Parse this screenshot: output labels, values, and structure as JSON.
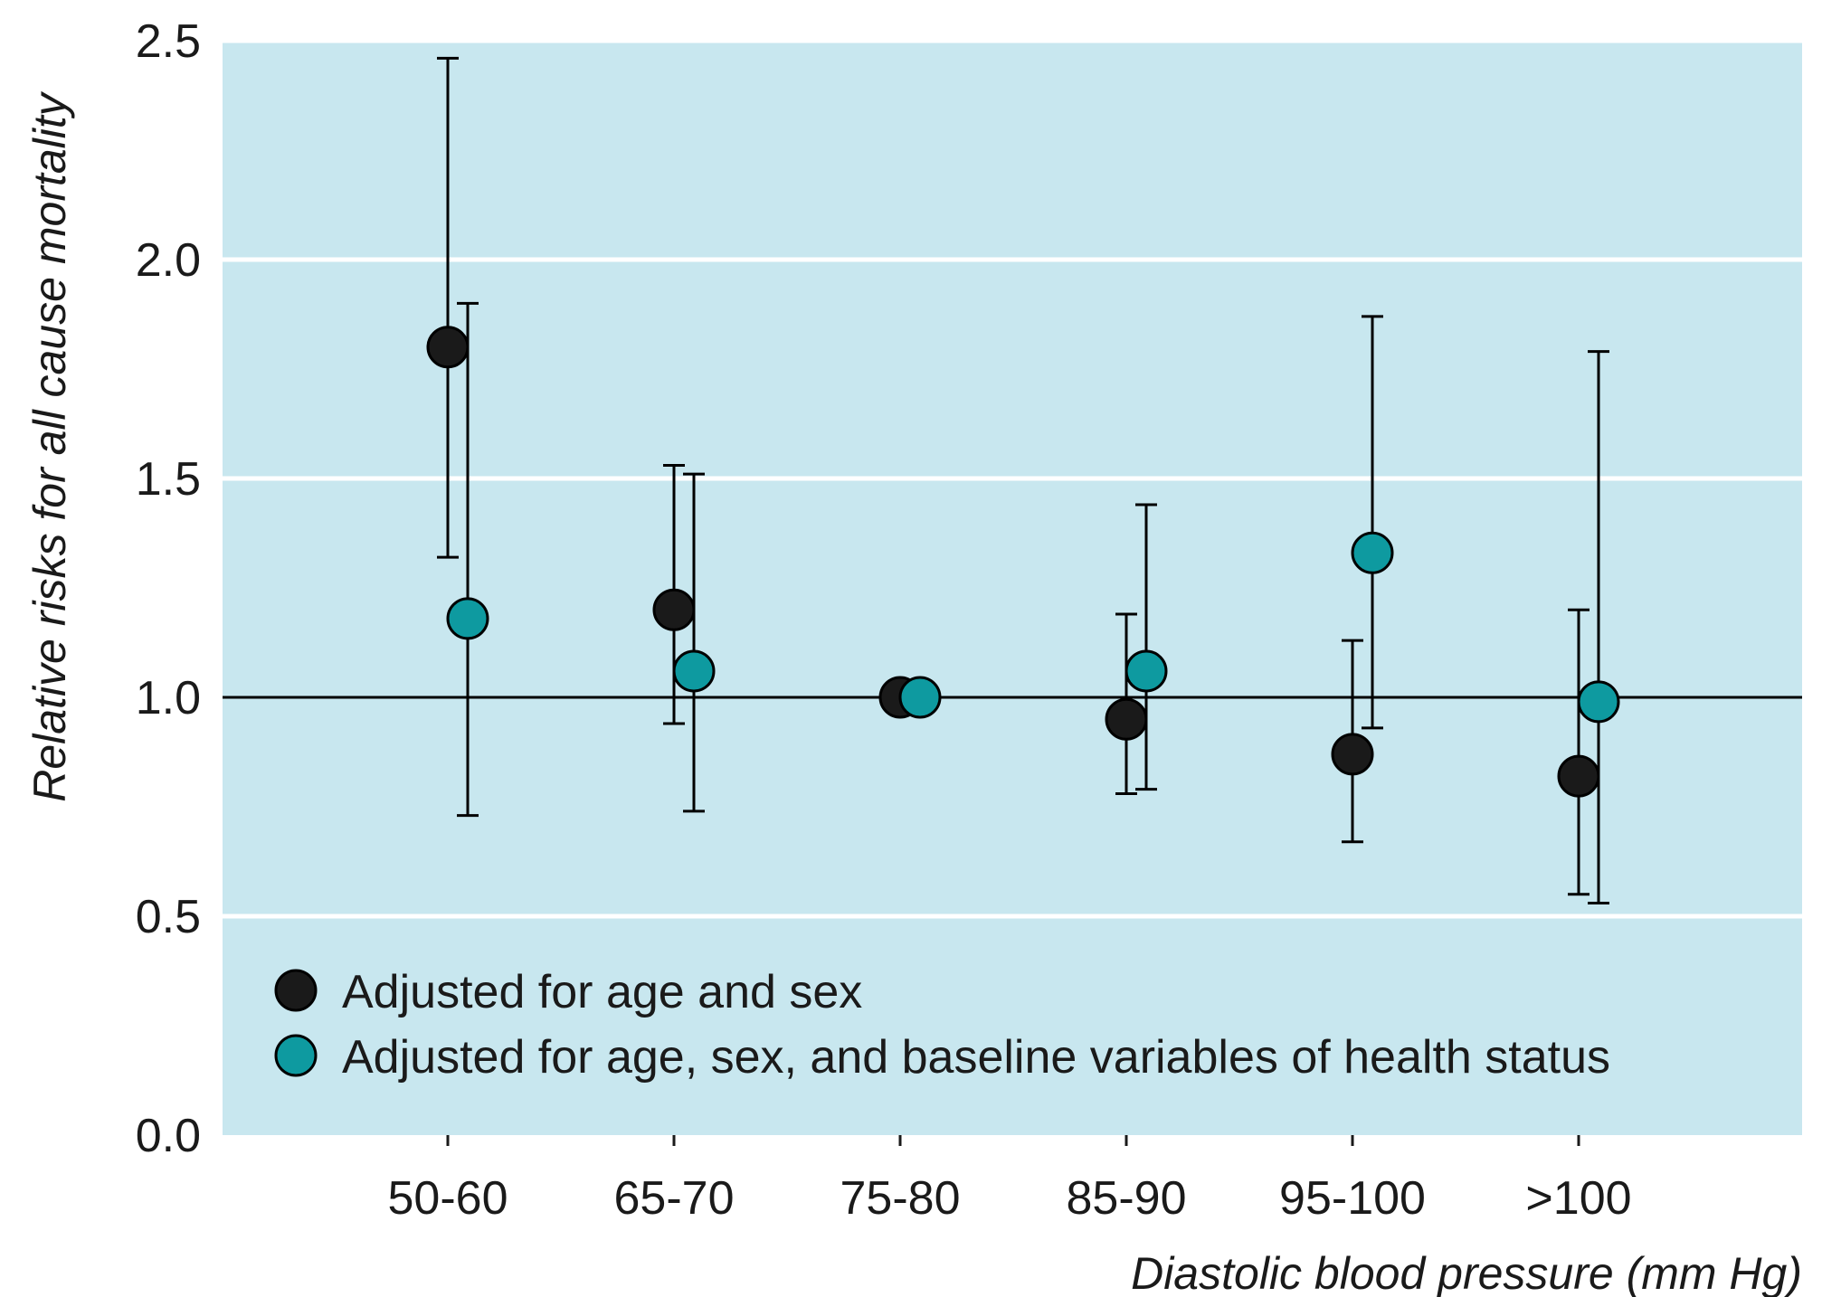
{
  "chart_data": {
    "type": "scatter",
    "xlabel": "Diastolic blood pressure (mm Hg)",
    "ylabel": "Relative risks for all cause mortality",
    "ylim": [
      0,
      2.5
    ],
    "yticks": [
      "0.0",
      "0.5",
      "1.0",
      "1.5",
      "2.0",
      "2.5"
    ],
    "categories": [
      "50-60",
      "65-70",
      "75-80",
      "85-90",
      "95-100",
      ">100"
    ],
    "reference_line": 1.0,
    "grid": true,
    "legend_position": "bottom-left",
    "colors": {
      "background": "#c8e7ef",
      "series1": "#1a1a1a",
      "series2": "#0e9aa0",
      "grid": "#ffffff"
    },
    "series": [
      {
        "name": "Adjusted for age and sex",
        "values": [
          1.8,
          1.2,
          1.0,
          0.95,
          0.87,
          0.82
        ],
        "lower": [
          1.32,
          0.94,
          null,
          0.78,
          0.67,
          0.55
        ],
        "upper": [
          2.46,
          1.53,
          null,
          1.19,
          1.13,
          1.2
        ]
      },
      {
        "name": "Adjusted for age, sex, and baseline variables of health status",
        "values": [
          1.18,
          1.06,
          1.0,
          1.06,
          1.33,
          0.99
        ],
        "lower": [
          0.73,
          0.74,
          null,
          0.79,
          0.93,
          0.53
        ],
        "upper": [
          1.9,
          1.51,
          null,
          1.44,
          1.87,
          1.79
        ]
      }
    ]
  }
}
